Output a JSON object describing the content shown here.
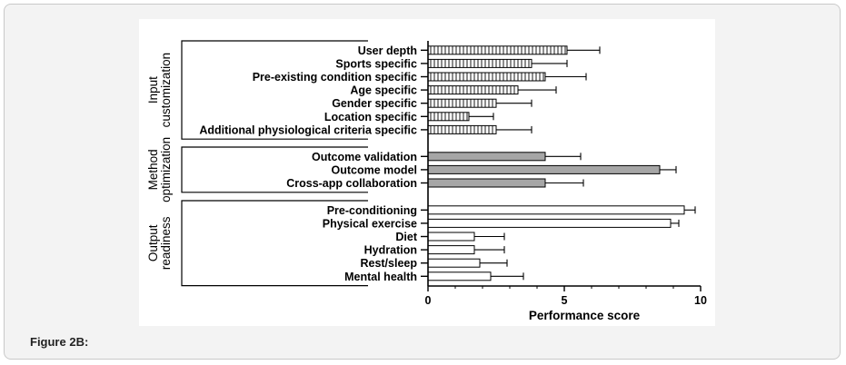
{
  "figure": {
    "caption": "Figure 2B:"
  },
  "chart_data": {
    "type": "bar",
    "orientation": "horizontal",
    "xlabel": "Performance score",
    "xlim": [
      0,
      10
    ],
    "xticks": [
      "0",
      "5",
      "10"
    ],
    "groups": [
      {
        "label_lines": [
          "Input",
          "customization"
        ],
        "fill": "hatched",
        "bars": [
          {
            "label": "User depth",
            "value": 5.1,
            "error": 1.2
          },
          {
            "label": "Sports specific",
            "value": 3.8,
            "error": 1.3
          },
          {
            "label": "Pre-existing condition specific",
            "value": 4.3,
            "error": 1.5
          },
          {
            "label": "Age specific",
            "value": 3.3,
            "error": 1.4
          },
          {
            "label": "Gender specific",
            "value": 2.5,
            "error": 1.3
          },
          {
            "label": "Location specific",
            "value": 1.5,
            "error": 0.9
          },
          {
            "label": "Additional physiological criteria specific",
            "value": 2.5,
            "error": 1.3
          }
        ]
      },
      {
        "label_lines": [
          "Method",
          "optimization"
        ],
        "fill": "gray",
        "bars": [
          {
            "label": "Outcome validation",
            "value": 4.3,
            "error": 1.3
          },
          {
            "label": "Outcome model",
            "value": 8.5,
            "error": 0.6
          },
          {
            "label": "Cross-app collaboration",
            "value": 4.3,
            "error": 1.4
          }
        ]
      },
      {
        "label_lines": [
          "Output",
          "readiness"
        ],
        "fill": "white",
        "bars": [
          {
            "label": "Pre-conditioning",
            "value": 9.4,
            "error": 0.4
          },
          {
            "label": "Physical exercise",
            "value": 8.9,
            "error": 0.3
          },
          {
            "label": "Diet",
            "value": 1.7,
            "error": 1.1
          },
          {
            "label": "Hydration",
            "value": 1.7,
            "error": 1.1
          },
          {
            "label": "Rest/sleep",
            "value": 1.9,
            "error": 1.0
          },
          {
            "label": "Mental health",
            "value": 2.3,
            "error": 1.2
          }
        ]
      }
    ],
    "colors": {
      "gray_fill": "#a6a6a6",
      "stroke": "#000000",
      "hatch": "#000000"
    }
  }
}
